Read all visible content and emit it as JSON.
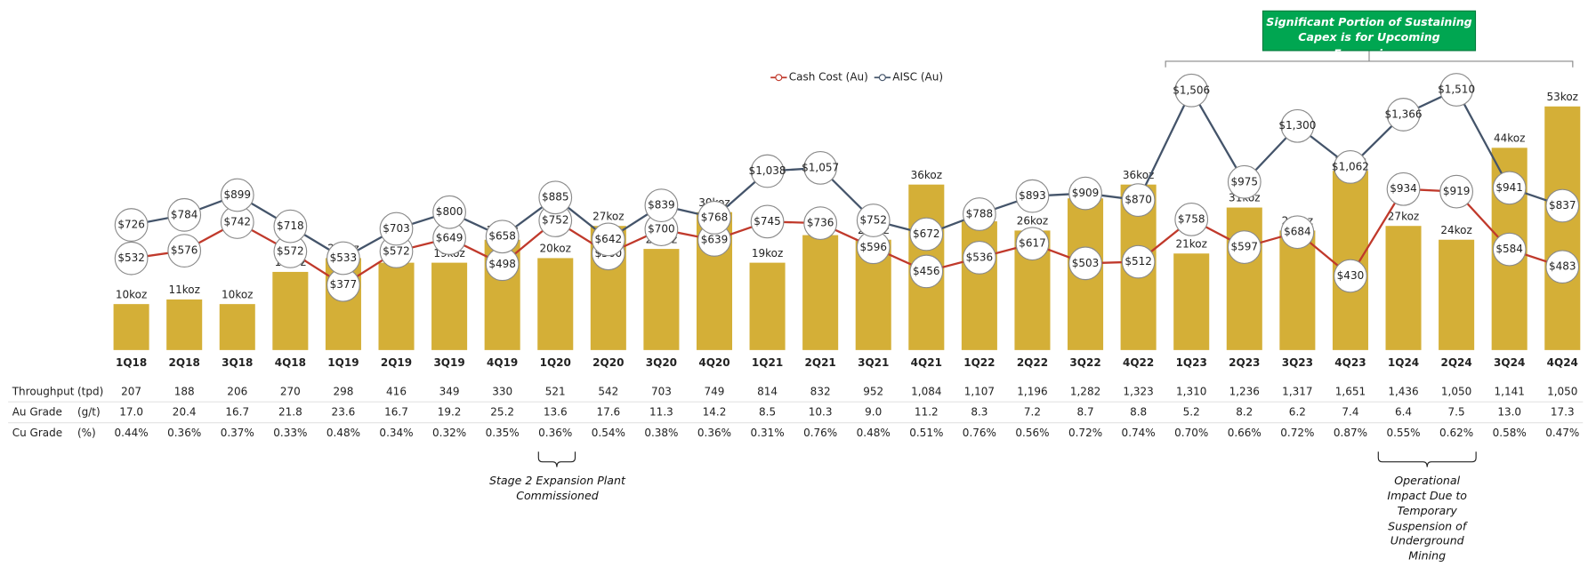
{
  "chart_data": {
    "type": "bar-line",
    "categories": [
      "1Q18",
      "2Q18",
      "3Q18",
      "4Q18",
      "1Q19",
      "2Q19",
      "3Q19",
      "4Q19",
      "1Q20",
      "2Q20",
      "3Q20",
      "4Q20",
      "1Q21",
      "2Q21",
      "3Q21",
      "4Q21",
      "1Q22",
      "2Q22",
      "3Q22",
      "4Q22",
      "1Q23",
      "2Q23",
      "3Q23",
      "4Q23",
      "1Q24",
      "2Q24",
      "3Q24",
      "4Q24"
    ],
    "ylim": [
      0,
      75
    ],
    "y2lim": [
      0,
      2000
    ],
    "bars": {
      "color": "#d4af37",
      "values": [
        10,
        11,
        10,
        17,
        20,
        19,
        19,
        24,
        20,
        27,
        22,
        30,
        19,
        25,
        24,
        36,
        28,
        26,
        33,
        36,
        21,
        31,
        26,
        39,
        27,
        24,
        44,
        53
      ],
      "value_labels": [
        "10koz",
        "11koz",
        "10koz",
        "17koz",
        "20koz",
        "19koz",
        "19koz",
        "24koz",
        "20koz",
        "27koz",
        "22koz",
        "30koz",
        "19koz",
        "25koz",
        "24koz",
        "36koz",
        "28koz",
        "26koz",
        "33koz",
        "36koz",
        "21koz",
        "31koz",
        "26koz",
        "39koz",
        "27koz",
        "24koz",
        "44koz",
        "53koz"
      ]
    },
    "series": [
      {
        "name": "Cash Cost (Au)",
        "color": "#c0392b",
        "axis": "y2",
        "values": [
          532,
          576,
          742,
          572,
          377,
          572,
          649,
          498,
          752,
          560,
          700,
          639,
          745,
          736,
          596,
          456,
          536,
          617,
          503,
          512,
          758,
          597,
          684,
          430,
          934,
          919,
          584,
          483
        ],
        "value_labels": [
          "$532",
          "$576",
          "$742",
          "$572",
          "$377",
          "$572",
          "$649",
          "$498",
          "$752",
          "$560",
          "$700",
          "$639",
          "$745",
          "$736",
          "$596",
          "$456",
          "$536",
          "$617",
          "$503",
          "$512",
          "$758",
          "$597",
          "$684",
          "$430",
          "$934",
          "$919",
          "$584",
          "$483"
        ]
      },
      {
        "name": "AISC (Au)",
        "color": "#44546a",
        "axis": "y2",
        "values": [
          726,
          784,
          899,
          718,
          533,
          703,
          800,
          658,
          885,
          642,
          839,
          768,
          1038,
          1057,
          752,
          672,
          788,
          893,
          909,
          870,
          1506,
          975,
          1300,
          1062,
          1366,
          1510,
          941,
          837
        ],
        "value_labels": [
          "$726",
          "$784",
          "$899",
          "$718",
          "$533",
          "$703",
          "$800",
          "$658",
          "$885",
          "$642",
          "$839",
          "$768",
          "$1,038",
          "$1,057",
          "$752",
          "$672",
          "$788",
          "$893",
          "$909",
          "$870",
          "$1,506",
          "$975",
          "$1,300",
          "$1,062",
          "$1,366",
          "$1,510",
          "$941",
          "$837"
        ]
      }
    ],
    "table": [
      {
        "label": "Throughput",
        "unit": "(tpd)",
        "cells": [
          "207",
          "188",
          "206",
          "270",
          "298",
          "416",
          "349",
          "330",
          "521",
          "542",
          "703",
          "749",
          "814",
          "832",
          "952",
          "1,084",
          "1,107",
          "1,196",
          "1,282",
          "1,323",
          "1,310",
          "1,236",
          "1,317",
          "1,651",
          "1,436",
          "1,050",
          "1,141",
          "1,050"
        ]
      },
      {
        "label": "Au Grade",
        "unit": "(g/t)",
        "cells": [
          "17.0",
          "20.4",
          "16.7",
          "21.8",
          "23.6",
          "16.7",
          "19.2",
          "25.2",
          "13.6",
          "17.6",
          "11.3",
          "14.2",
          "8.5",
          "10.3",
          "9.0",
          "11.2",
          "8.3",
          "7.2",
          "8.7",
          "8.8",
          "5.2",
          "8.2",
          "6.2",
          "7.4",
          "6.4",
          "7.5",
          "13.0",
          "17.3"
        ]
      },
      {
        "label": "Cu Grade",
        "unit": "(%)",
        "cells": [
          "0.44%",
          "0.36%",
          "0.37%",
          "0.33%",
          "0.48%",
          "0.34%",
          "0.32%",
          "0.35%",
          "0.36%",
          "0.54%",
          "0.38%",
          "0.36%",
          "0.31%",
          "0.76%",
          "0.48%",
          "0.51%",
          "0.76%",
          "0.56%",
          "0.72%",
          "0.74%",
          "0.70%",
          "0.66%",
          "0.72%",
          "0.87%",
          "0.55%",
          "0.62%",
          "0.58%",
          "0.47%"
        ]
      }
    ],
    "annotations": {
      "capex": "Significant Portion of Sustaining Capex is for Upcoming Expansions",
      "stage2": "Stage 2 Expansion Plant Commissioned",
      "operational": "Operational Impact Due to Temporary Suspension of Underground Mining"
    }
  }
}
